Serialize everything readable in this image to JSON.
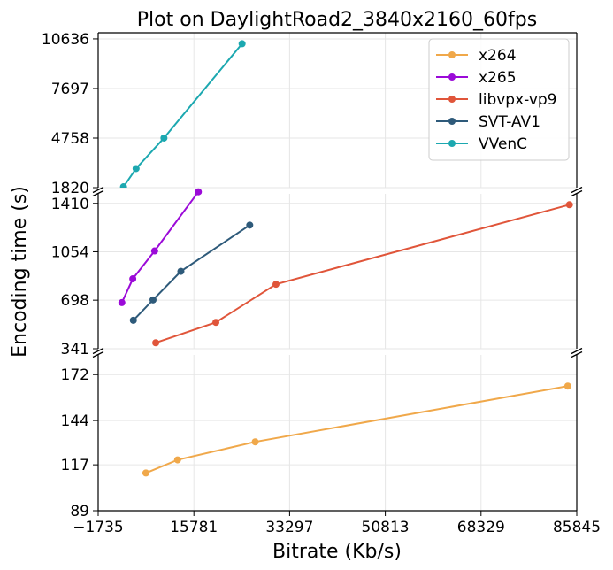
{
  "chart_data": {
    "type": "line",
    "title": "Plot on DaylightRoad2_3840x2160_60fps",
    "xlabel": "Bitrate (Kb/s)",
    "ylabel": "Encoding time (s)",
    "xlim": [
      -1735,
      85845
    ],
    "x_ticks": [
      -1735,
      15781,
      33297,
      50813,
      68329,
      85845
    ],
    "x_tick_labels": [
      "−1735",
      "15781",
      "33297",
      "50813",
      "68329",
      "85845"
    ],
    "grid": true,
    "legend_position": "top-right",
    "panels": [
      {
        "name": "top",
        "ylim": [
          1820,
          11000
        ],
        "y_ticks": [
          1820,
          4758,
          7697,
          10636
        ],
        "y_tick_labels": [
          "1820",
          "4758",
          "7697",
          "10636"
        ]
      },
      {
        "name": "middle",
        "ylim": [
          341,
          1480
        ],
        "y_ticks": [
          341,
          698,
          1054,
          1410
        ],
        "y_tick_labels": [
          "341",
          "698",
          "1054",
          "1410"
        ]
      },
      {
        "name": "bottom",
        "ylim": [
          89,
          184
        ],
        "y_ticks": [
          89,
          117,
          144,
          172
        ],
        "y_tick_labels": [
          "89",
          "117",
          "144",
          "172"
        ]
      }
    ],
    "series": [
      {
        "name": "x264",
        "color": "#f0a84a",
        "panel": "bottom",
        "points": [
          [
            7000,
            112
          ],
          [
            12800,
            120
          ],
          [
            27000,
            131
          ],
          [
            84200,
            165
          ]
        ]
      },
      {
        "name": "x265",
        "color": "#9b0ad8",
        "panel": "middle",
        "points": [
          [
            2600,
            680
          ],
          [
            4600,
            855
          ],
          [
            8600,
            1060
          ],
          [
            16600,
            1495
          ]
        ]
      },
      {
        "name": "libvpx-vp9",
        "color": "#e0553a",
        "panel": "middle",
        "points": [
          [
            8800,
            385
          ],
          [
            19800,
            535
          ],
          [
            30800,
            815
          ],
          [
            84500,
            1400
          ]
        ]
      },
      {
        "name": "SVT-AV1",
        "color": "#2e5a7a",
        "panel": "middle",
        "points": [
          [
            4700,
            550
          ],
          [
            8300,
            700
          ],
          [
            13400,
            910
          ],
          [
            26000,
            1250
          ]
        ]
      },
      {
        "name": "VVenC",
        "color": "#1ca8b0",
        "panel": "top",
        "points": [
          [
            2900,
            1870
          ],
          [
            5200,
            2950
          ],
          [
            10300,
            4760
          ],
          [
            24600,
            10350
          ]
        ]
      }
    ]
  }
}
